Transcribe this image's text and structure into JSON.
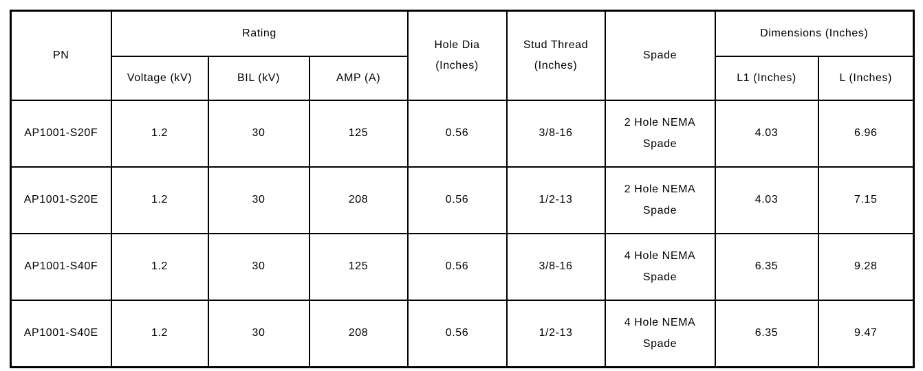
{
  "table": {
    "header": {
      "pn": "PN",
      "rating_group": "Rating",
      "voltage": "Voltage (kV)",
      "bil": "BIL (kV)",
      "amp": "AMP (A)",
      "hole_dia": "Hole Dia (Inches)",
      "stud_thread": "Stud Thread (Inches)",
      "spade": "Spade",
      "dimensions_group": "Dimensions (Inches)",
      "l1": "L1 (Inches)",
      "l": "L (Inches)"
    },
    "rows": [
      [
        "AP1001-S20F",
        "1.2",
        "30",
        "125",
        "0.56",
        "3/8-16",
        "2 Hole NEMA Spade",
        "4.03",
        "6.96"
      ],
      [
        "AP1001-S20E",
        "1.2",
        "30",
        "208",
        "0.56",
        "1/2-13",
        "2 Hole NEMA Spade",
        "4.03",
        "7.15"
      ],
      [
        "AP1001-S40F",
        "1.2",
        "30",
        "125",
        "0.56",
        "3/8-16",
        "4 Hole NEMA Spade",
        "6.35",
        "9.28"
      ],
      [
        "AP1001-S40E",
        "1.2",
        "30",
        "208",
        "0.56",
        "1/2-13",
        "4 Hole NEMA Spade",
        "6.35",
        "9.47"
      ]
    ],
    "border_color": "#000000",
    "background_color": "#ffffff"
  }
}
